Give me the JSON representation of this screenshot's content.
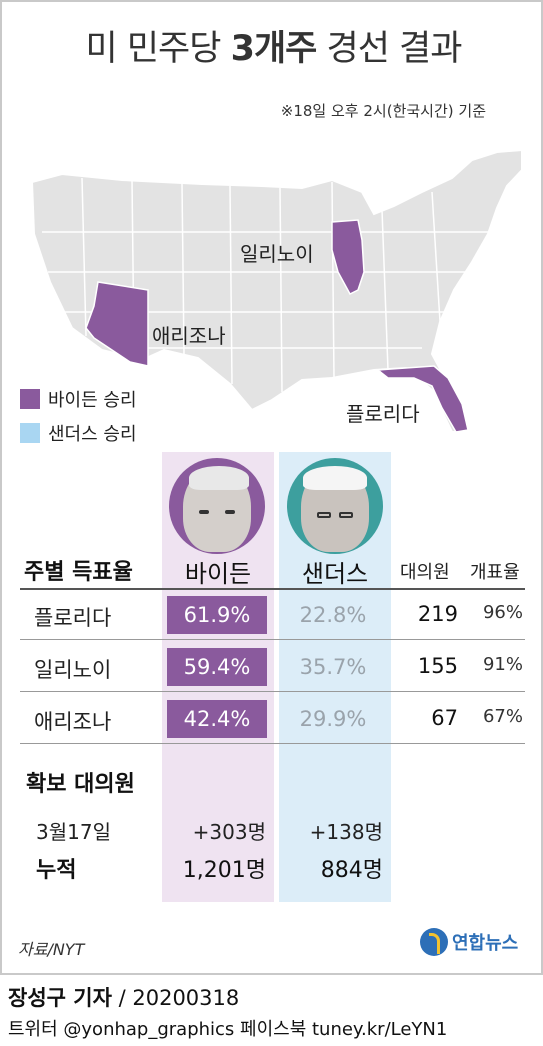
{
  "title": {
    "prefix": "미 민주당",
    "highlight": "3개주",
    "suffix": "경선 결과"
  },
  "note": "※18일 오후 2시(한국시간) 기준",
  "map_labels": {
    "illinois": "일리노이",
    "arizona": "애리조나",
    "florida": "플로리다"
  },
  "legend": [
    {
      "label": "바이든 승리",
      "color": "#8a5a9d"
    },
    {
      "label": "샌더스 승리",
      "color": "#a9d6f2"
    }
  ],
  "table": {
    "section_title": "주별 득표율",
    "candidates": [
      "바이든",
      "샌더스"
    ],
    "col_delegates": "대의원",
    "col_counted": "개표율",
    "rows": [
      {
        "state": "플로리다",
        "biden": "61.9%",
        "sanders": "22.8%",
        "delegates": "219",
        "counted": "96%"
      },
      {
        "state": "일리노이",
        "biden": "59.4%",
        "sanders": "35.7%",
        "delegates": "155",
        "counted": "91%"
      },
      {
        "state": "애리조나",
        "biden": "42.4%",
        "sanders": "29.9%",
        "delegates": "67",
        "counted": "67%"
      }
    ]
  },
  "delegates": {
    "section_title": "확보 대의원",
    "date_label": "3월17일",
    "biden_gain": "+303명",
    "sanders_gain": "+138명",
    "total_label": "누적",
    "biden_total": "1,201명",
    "sanders_total": "884명"
  },
  "source": "자료/NYT",
  "logo": "연합뉴스",
  "byline": {
    "reporter": "장성구 기자",
    "date": "/ 20200318"
  },
  "footer": "트위터 @yonhap_graphics  페이스북 tuney.kr/LeYN1"
}
